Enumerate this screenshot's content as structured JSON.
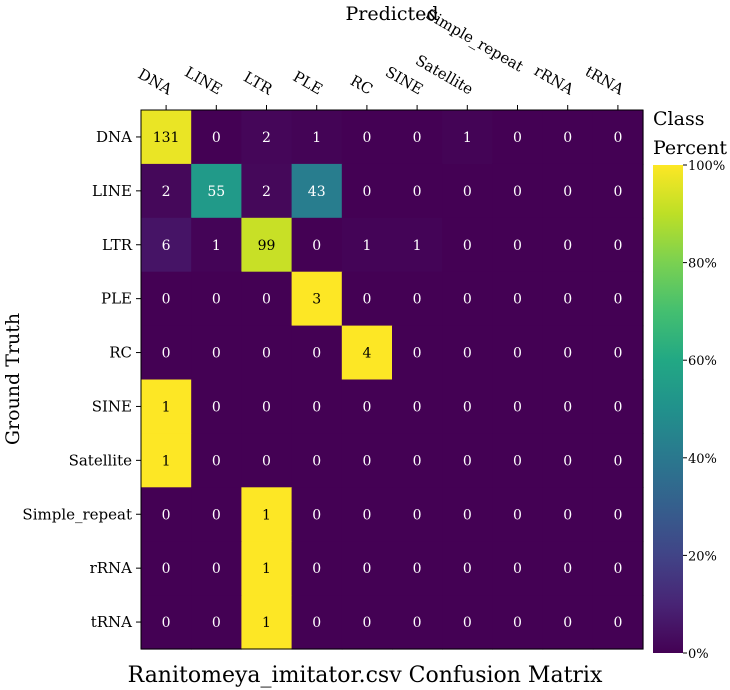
{
  "chart_data": {
    "type": "heatmap",
    "title": "Ranitomeya_imitator.csv Confusion Matrix",
    "xlabel": "Predicted",
    "ylabel": "Ground Truth",
    "x_categories": [
      "DNA",
      "LINE",
      "LTR",
      "PLE",
      "RC",
      "SINE",
      "Satellite",
      "Simple_repeat",
      "rRNA",
      "tRNA"
    ],
    "y_categories": [
      "DNA",
      "LINE",
      "LTR",
      "PLE",
      "RC",
      "SINE",
      "Satellite",
      "Simple_repeat",
      "rRNA",
      "tRNA"
    ],
    "values": [
      [
        131,
        0,
        2,
        1,
        0,
        0,
        1,
        0,
        0,
        0
      ],
      [
        2,
        55,
        2,
        43,
        0,
        0,
        0,
        0,
        0,
        0
      ],
      [
        6,
        1,
        99,
        0,
        1,
        1,
        0,
        0,
        0,
        0
      ],
      [
        0,
        0,
        0,
        3,
        0,
        0,
        0,
        0,
        0,
        0
      ],
      [
        0,
        0,
        0,
        0,
        4,
        0,
        0,
        0,
        0,
        0
      ],
      [
        1,
        0,
        0,
        0,
        0,
        0,
        0,
        0,
        0,
        0
      ],
      [
        1,
        0,
        0,
        0,
        0,
        0,
        0,
        0,
        0,
        0
      ],
      [
        0,
        0,
        1,
        0,
        0,
        0,
        0,
        0,
        0,
        0
      ],
      [
        0,
        0,
        1,
        0,
        0,
        0,
        0,
        0,
        0,
        0
      ],
      [
        0,
        0,
        1,
        0,
        0,
        0,
        0,
        0,
        0,
        0
      ]
    ],
    "color_scale": "row percent",
    "colorbar": {
      "title": [
        "Class",
        "Percent"
      ],
      "ticks": [
        "0%",
        "20%",
        "40%",
        "60%",
        "80%",
        "100%"
      ],
      "range": [
        0,
        100
      ]
    },
    "colormap": "viridis"
  }
}
